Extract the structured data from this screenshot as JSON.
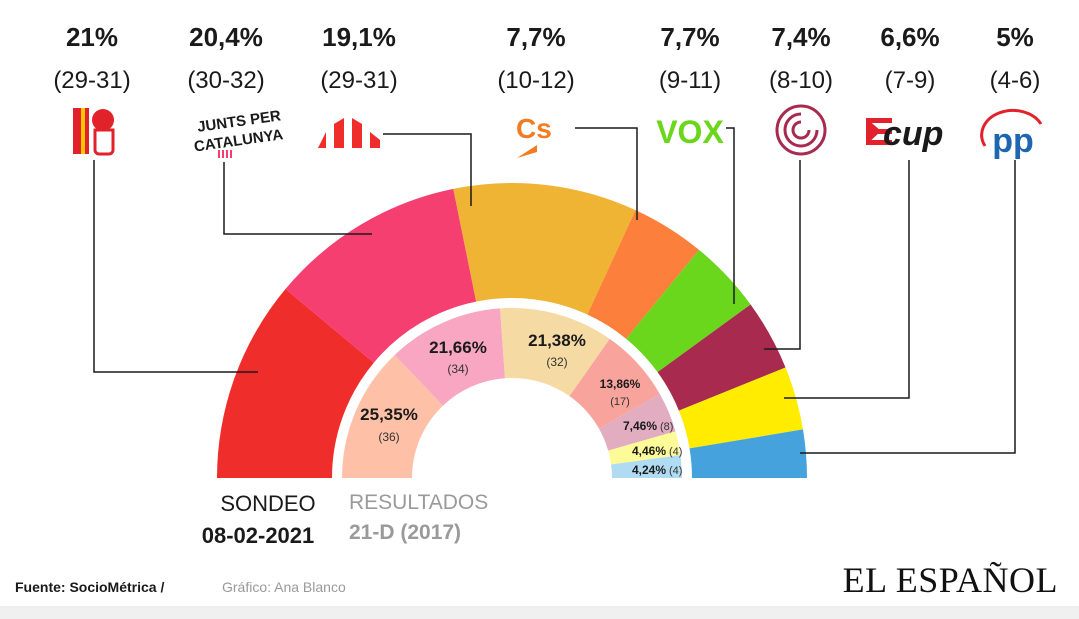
{
  "chart_data": [
    {
      "type": "pie",
      "subtype": "parliament-semicircle",
      "label_line1": "SONDEO",
      "label_line2": "08-02-2021",
      "parties": [
        {
          "percent": "21%",
          "seats": "(29-31)",
          "value": 21,
          "color": "#ef2d2a",
          "logo_icon": "psc-rose-fist-icon"
        },
        {
          "percent": "20,4%",
          "seats": "(30-32)",
          "value": 20.4,
          "color": "#f63f71",
          "logo_icon": "junts-per-catalunya-icon",
          "logo_text_1": "JUNTS PER",
          "logo_text_2": "CATALUNYA"
        },
        {
          "percent": "19,1%",
          "seats": "(29-31)",
          "value": 19.1,
          "color": "#efb433",
          "logo_icon": "erc-bars-icon"
        },
        {
          "percent": "7,7%",
          "seats": "(10-12)",
          "value": 7.7,
          "color": "#fc7f3c",
          "logo_icon": "cs-icon",
          "logo_text": "Cs"
        },
        {
          "percent": "7,7%",
          "seats": "(9-11)",
          "value": 7.7,
          "color": "#6ad61c",
          "logo_icon": "vox-icon",
          "logo_text": "VOX"
        },
        {
          "percent": "7,4%",
          "seats": "(8-10)",
          "value": 7.4,
          "color": "#a82a4f",
          "logo_icon": "comuns-circle-icon"
        },
        {
          "percent": "6,6%",
          "seats": "(7-9)",
          "value": 6.6,
          "color": "#ffec01",
          "logo_icon": "cup-icon",
          "logo_text": "cup"
        },
        {
          "percent": "5%",
          "seats": "(4-6)",
          "value": 5,
          "color": "#46a2dc",
          "logo_icon": "pp-icon",
          "logo_text": "pp"
        }
      ]
    },
    {
      "type": "pie",
      "subtype": "parliament-semicircle",
      "label_line1": "RESULTADOS",
      "label_line2": "21-D (2017)",
      "parties": [
        {
          "percent": "25,35%",
          "seats": "(36)",
          "value": 25.35,
          "color": "#fec1a7"
        },
        {
          "percent": "21,66%",
          "seats": "(34)",
          "value": 21.66,
          "color": "#f9a6c3"
        },
        {
          "percent": "21,38%",
          "seats": "(32)",
          "value": 21.38,
          "color": "#f6daa3"
        },
        {
          "percent": "13,86%",
          "seats": "(17)",
          "value": 13.86,
          "color": "#f8a49d"
        },
        {
          "percent": "7,46%",
          "seats": "(8)",
          "value": 7.46,
          "color": "#e2acc1"
        },
        {
          "percent": "4,46%",
          "seats": "(4)",
          "value": 4.46,
          "color": "#fdfb97"
        },
        {
          "percent": "4,24%",
          "seats": "(4)",
          "value": 4.24,
          "color": "#b0dcf3"
        }
      ]
    }
  ],
  "footer": {
    "source_label": "Fuente: SocioMétrica /",
    "credit_label": "Gráfico: Ana Blanco",
    "brand": "EL ESPAÑOL"
  }
}
